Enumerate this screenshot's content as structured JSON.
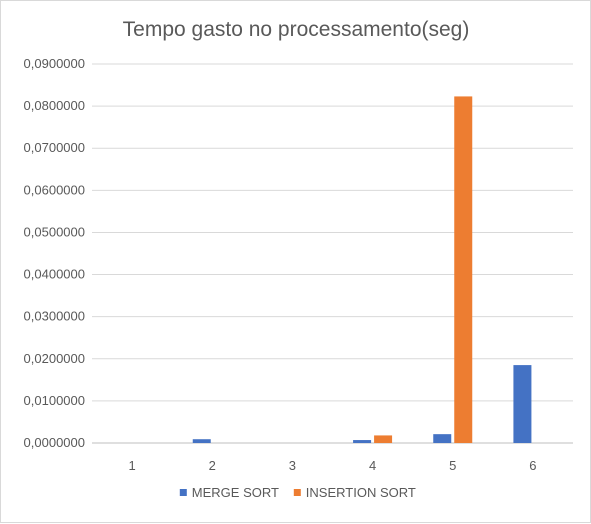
{
  "chart_data": {
    "type": "bar",
    "title": "Tempo gasto no processamento(seg)",
    "xlabel": "",
    "ylabel": "",
    "categories": [
      "1",
      "2",
      "3",
      "4",
      "5",
      "6"
    ],
    "ylim": [
      0,
      0.09
    ],
    "yticks": [
      "0,0000000",
      "0,0100000",
      "0,0200000",
      "0,0300000",
      "0,0400000",
      "0,0500000",
      "0,0600000",
      "0,0700000",
      "0,0800000",
      "0,0900000"
    ],
    "grid": true,
    "legend_position": "bottom",
    "series": [
      {
        "name": "MERGE SORT",
        "color": "#4472c4",
        "values": [
          0.0,
          0.0009,
          0.0,
          0.0007,
          0.0021,
          0.0185
        ]
      },
      {
        "name": "INSERTION SORT",
        "color": "#ed7d31",
        "values": [
          0.0,
          0.0,
          0.0,
          0.0018,
          0.0823,
          0.0
        ]
      }
    ]
  }
}
